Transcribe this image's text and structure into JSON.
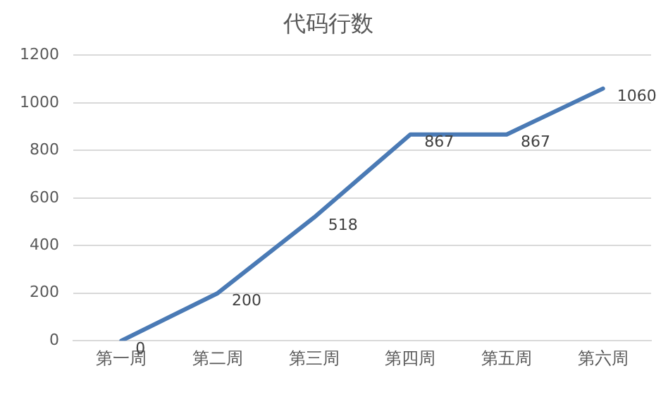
{
  "chart_data": {
    "type": "line",
    "title": "代码行数",
    "categories": [
      "第一周",
      "第二周",
      "第三周",
      "第四周",
      "第五周",
      "第六周"
    ],
    "series": [
      {
        "color": "#4a7ab5",
        "values": [
          0,
          200,
          518,
          867,
          867,
          1060
        ]
      }
    ],
    "ylim": [
      0,
      1200
    ],
    "yticks": [
      0,
      200,
      400,
      600,
      800,
      1000,
      1200
    ],
    "grid": "y",
    "legend": false,
    "marker": "none",
    "line_style": "solid",
    "data_labels": true
  }
}
